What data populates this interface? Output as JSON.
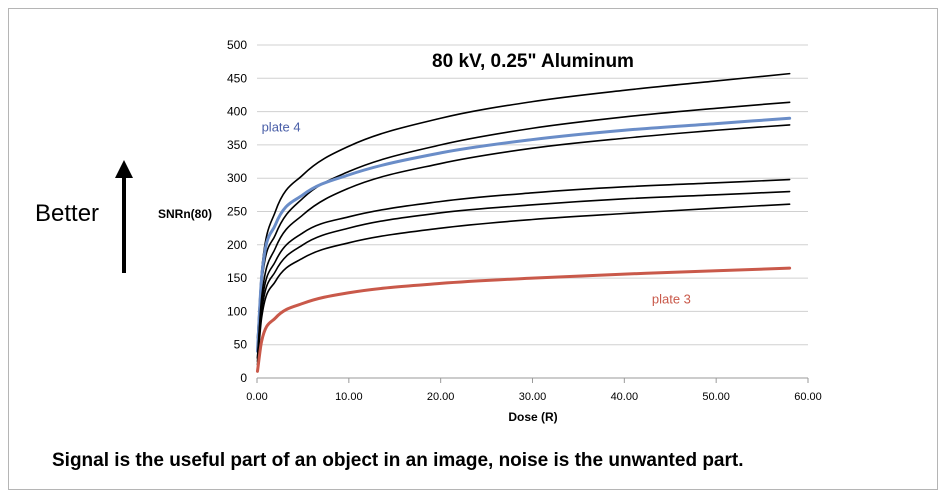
{
  "left_label": "Better",
  "caption": "Signal is the useful part of an object in an image, noise is the unwanted part.",
  "colors": {
    "default_line": "#000000",
    "highlight_blue": "#6a8dc8",
    "highlight_red": "#c9594a",
    "grid": "#d0d0d0"
  },
  "chart_data": {
    "type": "line",
    "title": "80 kV, 0.25\" Aluminum",
    "xlabel": "Dose (R)",
    "ylabel": "SNRn(80)",
    "xlim": [
      0,
      60
    ],
    "ylim": [
      0,
      500
    ],
    "x_ticks": [
      "0.00",
      "10.00",
      "20.00",
      "30.00",
      "40.00",
      "50.00",
      "60.00"
    ],
    "y_ticks": [
      "0",
      "50",
      "100",
      "150",
      "200",
      "250",
      "300",
      "350",
      "400",
      "450",
      "500"
    ],
    "grid": "horizontal",
    "annotations": [
      {
        "text": "plate 4",
        "color": "#4a5fa8",
        "x": 0.5,
        "y": 370
      },
      {
        "text": "plate 3",
        "color": "#c9594a",
        "x": 43,
        "y": 112
      }
    ],
    "series": [
      {
        "color": "#000000",
        "width": 1.6,
        "x": [
          0.05,
          0.5,
          2,
          5,
          10,
          20,
          30,
          40,
          50,
          58
        ],
        "y": [
          60,
          160,
          250,
          305,
          348,
          390,
          415,
          432,
          446,
          457
        ]
      },
      {
        "color": "#000000",
        "width": 1.6,
        "x": [
          0.05,
          0.5,
          2,
          5,
          10,
          20,
          30,
          40,
          50,
          58
        ],
        "y": [
          40,
          140,
          215,
          270,
          310,
          350,
          375,
          392,
          405,
          414
        ]
      },
      {
        "color": "#6a8dc8",
        "width": 3,
        "x": [
          0.05,
          0.5,
          2,
          5,
          10,
          20,
          30,
          40,
          50,
          58
        ],
        "y": [
          40,
          150,
          230,
          275,
          305,
          338,
          358,
          372,
          382,
          390
        ]
      },
      {
        "color": "#000000",
        "width": 1.6,
        "x": [
          0.05,
          0.5,
          2,
          5,
          10,
          20,
          30,
          40,
          50,
          58
        ],
        "y": [
          30,
          120,
          195,
          245,
          285,
          322,
          345,
          360,
          372,
          380
        ]
      },
      {
        "color": "#000000",
        "width": 1.6,
        "x": [
          0.05,
          0.5,
          2,
          5,
          10,
          20,
          30,
          40,
          50,
          58
        ],
        "y": [
          30,
          110,
          175,
          218,
          242,
          265,
          278,
          287,
          293,
          298
        ]
      },
      {
        "color": "#000000",
        "width": 1.6,
        "x": [
          0.05,
          0.5,
          2,
          5,
          10,
          20,
          30,
          40,
          50,
          58
        ],
        "y": [
          25,
          100,
          160,
          200,
          225,
          248,
          260,
          269,
          275,
          280
        ]
      },
      {
        "color": "#000000",
        "width": 1.6,
        "x": [
          0.05,
          0.5,
          2,
          5,
          10,
          20,
          30,
          40,
          50,
          58
        ],
        "y": [
          20,
          90,
          145,
          180,
          203,
          225,
          238,
          247,
          255,
          261
        ]
      },
      {
        "color": "#c9594a",
        "width": 3,
        "x": [
          0.05,
          0.5,
          2,
          5,
          10,
          20,
          30,
          40,
          50,
          58
        ],
        "y": [
          10,
          55,
          90,
          112,
          128,
          142,
          150,
          156,
          161,
          165
        ]
      }
    ]
  }
}
